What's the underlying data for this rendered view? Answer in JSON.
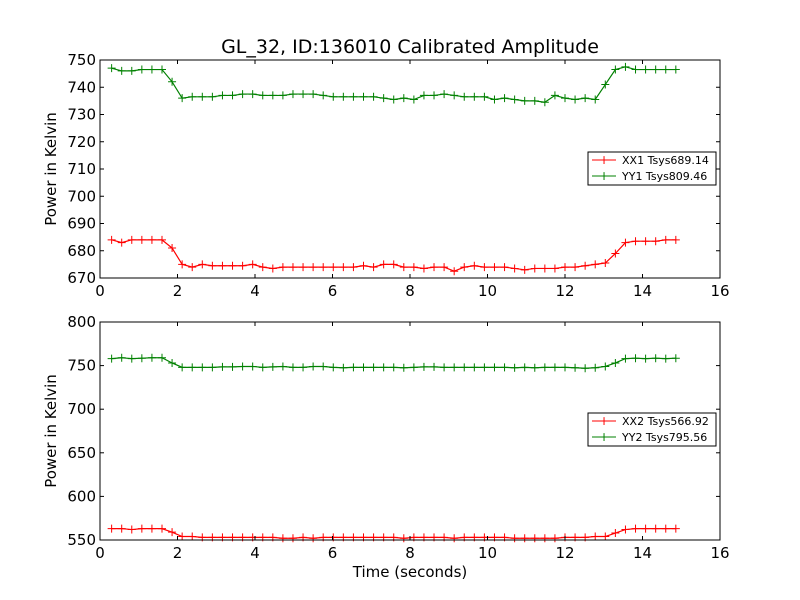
{
  "figure": {
    "title": "GL_32, ID:136010 Calibrated Amplitude"
  },
  "chart_data": [
    {
      "type": "line",
      "title": "GL_32, ID:136010 Calibrated Amplitude",
      "xlabel": "",
      "ylabel": "Power in Kelvin",
      "xlim": [
        0,
        16
      ],
      "ylim": [
        670,
        750
      ],
      "xticks": [
        0,
        2,
        4,
        6,
        8,
        10,
        12,
        14,
        16
      ],
      "yticks": [
        670,
        680,
        690,
        700,
        710,
        720,
        730,
        740,
        750
      ],
      "grid": false,
      "legend_position": "right",
      "x": [
        0.3,
        0.56,
        0.82,
        1.08,
        1.34,
        1.6,
        1.86,
        2.12,
        2.38,
        2.64,
        2.9,
        3.16,
        3.42,
        3.68,
        3.94,
        4.2,
        4.46,
        4.72,
        4.98,
        5.24,
        5.5,
        5.76,
        6.02,
        6.28,
        6.54,
        6.8,
        7.06,
        7.32,
        7.58,
        7.84,
        8.1,
        8.36,
        8.62,
        8.88,
        9.14,
        9.4,
        9.66,
        9.92,
        10.18,
        10.44,
        10.7,
        10.96,
        11.22,
        11.48,
        11.74,
        12.0,
        12.26,
        12.52,
        12.78,
        13.04,
        13.3,
        13.56,
        13.82,
        14.08,
        14.34,
        14.6,
        14.86
      ],
      "series": [
        {
          "name": "XX1 Tsys689.14",
          "color": "#ff0000",
          "values": [
            684,
            683,
            684,
            684,
            684,
            684,
            681,
            675,
            674,
            675,
            674.5,
            674.5,
            674.5,
            674.5,
            675,
            674,
            673.5,
            674,
            674,
            674,
            674,
            674,
            674,
            674,
            674,
            674.5,
            674,
            675,
            675,
            674,
            674,
            673.5,
            674,
            674,
            672.5,
            674,
            674.5,
            674,
            674,
            674,
            673.5,
            673,
            673.5,
            673.5,
            673.5,
            674,
            674,
            674.5,
            675,
            675.5,
            679,
            683,
            683.5,
            683.5,
            683.5,
            684,
            684
          ]
        },
        {
          "name": "YY1 Tsys809.46",
          "color": "#008000",
          "values": [
            747,
            746,
            746,
            746.5,
            746.5,
            746.5,
            742,
            736,
            736.5,
            736.5,
            736.5,
            737,
            737,
            737.5,
            737.5,
            737,
            737,
            737,
            737.5,
            737.5,
            737.5,
            737,
            736.5,
            736.5,
            736.5,
            736.5,
            736.5,
            736,
            735.5,
            736,
            735.5,
            737,
            737,
            737.5,
            737,
            736.5,
            736.5,
            736.5,
            735.5,
            736,
            735.5,
            735,
            735,
            734.5,
            737,
            736,
            735.5,
            736,
            735.5,
            741,
            746.5,
            747.5,
            746.5,
            746.5,
            746.5,
            746.5,
            746.5
          ]
        }
      ]
    },
    {
      "type": "line",
      "title": "",
      "xlabel": "Time (seconds)",
      "ylabel": "Power in Kelvin",
      "xlim": [
        0,
        16
      ],
      "ylim": [
        550,
        800
      ],
      "xticks": [
        0,
        2,
        4,
        6,
        8,
        10,
        12,
        14,
        16
      ],
      "yticks": [
        550,
        600,
        650,
        700,
        750,
        800
      ],
      "grid": false,
      "legend_position": "right",
      "x": [
        0.3,
        0.56,
        0.82,
        1.08,
        1.34,
        1.6,
        1.86,
        2.12,
        2.38,
        2.64,
        2.9,
        3.16,
        3.42,
        3.68,
        3.94,
        4.2,
        4.46,
        4.72,
        4.98,
        5.24,
        5.5,
        5.76,
        6.02,
        6.28,
        6.54,
        6.8,
        7.06,
        7.32,
        7.58,
        7.84,
        8.1,
        8.36,
        8.62,
        8.88,
        9.14,
        9.4,
        9.66,
        9.92,
        10.18,
        10.44,
        10.7,
        10.96,
        11.22,
        11.48,
        11.74,
        12.0,
        12.26,
        12.52,
        12.78,
        13.04,
        13.3,
        13.56,
        13.82,
        14.08,
        14.34,
        14.6,
        14.86
      ],
      "series": [
        {
          "name": "XX2 Tsys566.92",
          "color": "#ff0000",
          "values": [
            563,
            563,
            562,
            563,
            563,
            563,
            559,
            554,
            554,
            553,
            553,
            553,
            553,
            553,
            553,
            553,
            553,
            552,
            552,
            553,
            552,
            553,
            553,
            553,
            553,
            553,
            553,
            553,
            553,
            552,
            553,
            553,
            553,
            553,
            552,
            553,
            553,
            553,
            553,
            553,
            552,
            552,
            552,
            552,
            552,
            553,
            553,
            553,
            554,
            554,
            558,
            562,
            563,
            563,
            563,
            563,
            563
          ]
        },
        {
          "name": "YY2 Tsys795.56",
          "color": "#008000",
          "values": [
            758,
            759,
            758,
            758.5,
            759,
            759,
            753,
            748,
            748,
            748,
            748,
            748.5,
            748.5,
            749,
            749,
            748,
            748.5,
            749,
            748,
            748,
            749,
            749,
            748,
            747.5,
            748,
            748,
            748,
            748,
            748,
            747.5,
            748,
            748.5,
            748.5,
            748,
            748,
            748,
            748,
            748,
            748,
            748,
            747.5,
            748,
            747.5,
            748,
            748,
            748,
            747.5,
            747,
            747.5,
            749,
            753,
            758,
            758.5,
            758,
            758.5,
            758,
            758.5
          ]
        }
      ]
    }
  ]
}
